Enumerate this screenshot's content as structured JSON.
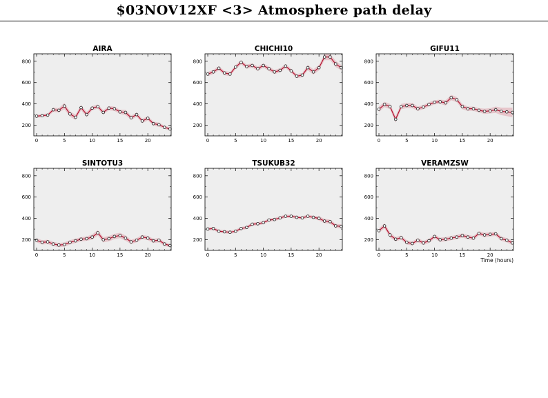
{
  "title": "$03NOV12XF <3>  Atmosphere path delay",
  "colors": {
    "background": "#eeeeee",
    "band": "#e7c6cb",
    "line": "#b3102e",
    "marker_fill": "#ffffff",
    "axis": "#000000"
  },
  "chart_data": [
    {
      "type": "line",
      "title": "AIRA",
      "xlim": [
        -0.5,
        24.2
      ],
      "ylim": [
        100,
        870
      ],
      "xticks": [
        0,
        5,
        10,
        15,
        20
      ],
      "yticks": [
        200,
        400,
        600,
        800
      ],
      "xlabel": "",
      "grid": false,
      "x": [
        0,
        1,
        2,
        3,
        4,
        5,
        6,
        7,
        8,
        9,
        10,
        11,
        12,
        13,
        14,
        15,
        16,
        17,
        18,
        19,
        20,
        21,
        22,
        23,
        24
      ],
      "y": [
        285,
        290,
        295,
        345,
        340,
        380,
        305,
        275,
        365,
        300,
        360,
        375,
        320,
        360,
        355,
        325,
        320,
        270,
        300,
        240,
        265,
        215,
        205,
        180,
        165
      ],
      "band": [
        15,
        15,
        15,
        20,
        20,
        30,
        25,
        25,
        25,
        25,
        20,
        20,
        20,
        20,
        20,
        20,
        25,
        20,
        20,
        20,
        20,
        20,
        20,
        15,
        15
      ]
    },
    {
      "type": "line",
      "title": "CHICHI10",
      "xlim": [
        -0.5,
        24.2
      ],
      "ylim": [
        100,
        870
      ],
      "xticks": [
        0,
        5,
        10,
        15,
        20
      ],
      "yticks": [
        200,
        400,
        600,
        800
      ],
      "xlabel": "",
      "grid": false,
      "x": [
        0,
        1,
        2,
        3,
        4,
        5,
        6,
        7,
        8,
        9,
        10,
        11,
        12,
        13,
        14,
        15,
        16,
        17,
        18,
        19,
        20,
        21,
        22,
        23,
        24
      ],
      "y": [
        680,
        700,
        735,
        690,
        680,
        745,
        790,
        750,
        760,
        730,
        760,
        730,
        700,
        715,
        755,
        710,
        660,
        670,
        740,
        700,
        740,
        840,
        840,
        775,
        740
      ],
      "band": [
        20,
        20,
        20,
        20,
        20,
        20,
        20,
        20,
        20,
        20,
        20,
        20,
        20,
        20,
        20,
        20,
        20,
        20,
        25,
        25,
        25,
        30,
        30,
        30,
        25
      ]
    },
    {
      "type": "line",
      "title": "GIFU11",
      "xlim": [
        -0.5,
        24.2
      ],
      "ylim": [
        100,
        870
      ],
      "xticks": [
        0,
        5,
        10,
        15,
        20
      ],
      "yticks": [
        200,
        400,
        600,
        800
      ],
      "xlabel": "",
      "grid": false,
      "x": [
        0,
        1,
        2,
        3,
        4,
        5,
        6,
        7,
        8,
        9,
        10,
        11,
        12,
        13,
        14,
        15,
        16,
        17,
        18,
        19,
        20,
        21,
        22,
        23,
        24
      ],
      "y": [
        350,
        395,
        375,
        255,
        375,
        385,
        385,
        355,
        370,
        395,
        415,
        420,
        410,
        460,
        440,
        375,
        355,
        355,
        340,
        330,
        335,
        345,
        330,
        325,
        320
      ],
      "band": [
        25,
        25,
        25,
        30,
        25,
        25,
        25,
        20,
        20,
        20,
        20,
        20,
        25,
        25,
        25,
        25,
        20,
        20,
        20,
        25,
        25,
        30,
        35,
        40,
        45
      ]
    },
    {
      "type": "line",
      "title": "SINTOTU3",
      "xlim": [
        -0.5,
        24.2
      ],
      "ylim": [
        100,
        870
      ],
      "xticks": [
        0,
        5,
        10,
        15,
        20
      ],
      "yticks": [
        200,
        400,
        600,
        800
      ],
      "xlabel": "",
      "grid": false,
      "x": [
        0,
        1,
        2,
        3,
        4,
        5,
        6,
        7,
        8,
        9,
        10,
        11,
        12,
        13,
        14,
        15,
        16,
        17,
        18,
        19,
        20,
        21,
        22,
        23,
        24
      ],
      "y": [
        195,
        175,
        180,
        160,
        150,
        155,
        175,
        190,
        205,
        210,
        225,
        265,
        200,
        210,
        230,
        240,
        215,
        180,
        195,
        225,
        215,
        190,
        195,
        160,
        145
      ],
      "band": [
        20,
        20,
        20,
        20,
        20,
        20,
        20,
        20,
        20,
        20,
        25,
        25,
        25,
        25,
        25,
        25,
        25,
        20,
        20,
        20,
        20,
        20,
        20,
        20,
        15
      ]
    },
    {
      "type": "line",
      "title": "TSUKUB32",
      "xlim": [
        -0.5,
        24.2
      ],
      "ylim": [
        100,
        870
      ],
      "xticks": [
        0,
        5,
        10,
        15,
        20
      ],
      "yticks": [
        200,
        400,
        600,
        800
      ],
      "xlabel": "",
      "grid": false,
      "x": [
        0,
        1,
        2,
        3,
        4,
        5,
        6,
        7,
        8,
        9,
        10,
        11,
        12,
        13,
        14,
        15,
        16,
        17,
        18,
        19,
        20,
        21,
        22,
        23,
        24
      ],
      "y": [
        300,
        305,
        280,
        275,
        270,
        280,
        305,
        315,
        345,
        350,
        360,
        385,
        390,
        405,
        420,
        420,
        410,
        405,
        420,
        410,
        400,
        375,
        370,
        330,
        325
      ],
      "band": [
        15,
        15,
        15,
        15,
        15,
        15,
        15,
        15,
        15,
        15,
        15,
        15,
        15,
        15,
        15,
        15,
        15,
        15,
        15,
        15,
        20,
        20,
        20,
        20,
        20
      ]
    },
    {
      "type": "line",
      "title": "VERAMZSW",
      "xlim": [
        -0.5,
        24.2
      ],
      "ylim": [
        100,
        870
      ],
      "xticks": [
        0,
        5,
        10,
        15,
        20
      ],
      "yticks": [
        200,
        400,
        600,
        800
      ],
      "xlabel": "Time (hours)",
      "grid": false,
      "x": [
        0,
        1,
        2,
        3,
        4,
        5,
        6,
        7,
        8,
        9,
        10,
        11,
        12,
        13,
        14,
        15,
        16,
        17,
        18,
        19,
        20,
        21,
        22,
        23,
        24
      ],
      "y": [
        285,
        330,
        245,
        205,
        220,
        175,
        165,
        195,
        170,
        190,
        230,
        200,
        205,
        215,
        225,
        240,
        225,
        215,
        260,
        245,
        250,
        255,
        210,
        195,
        170
      ],
      "band": [
        20,
        25,
        25,
        20,
        20,
        20,
        20,
        20,
        20,
        20,
        20,
        20,
        20,
        20,
        20,
        20,
        20,
        20,
        20,
        20,
        20,
        20,
        20,
        20,
        20
      ]
    }
  ]
}
